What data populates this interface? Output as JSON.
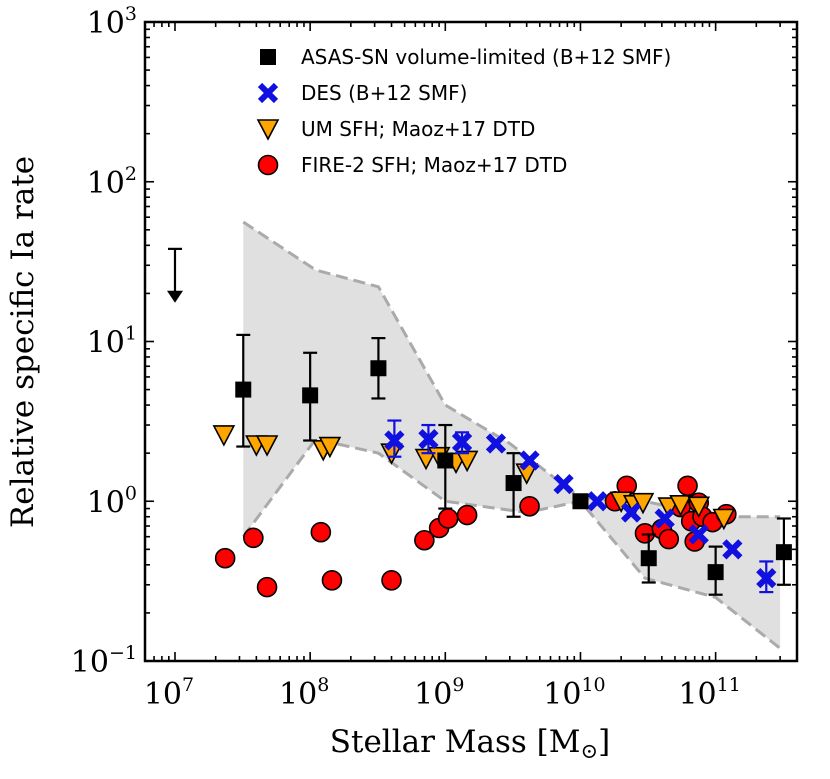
{
  "chart_data": {
    "type": "scatter",
    "xscale": "log",
    "yscale": "log",
    "xlim": [
      6000000,
      400000000000
    ],
    "ylim": [
      0.1,
      1000
    ],
    "xlabel": "Stellar Mass [M",
    "xlabel_unit_symbol": "⊙",
    "xlabel_close": "]",
    "ylabel": "Relative specific Ia rate",
    "x_ticks": [
      {
        "value": 10000000,
        "base": "10",
        "exp": "7"
      },
      {
        "value": 100000000,
        "base": "10",
        "exp": "8"
      },
      {
        "value": 1000000000,
        "base": "10",
        "exp": "9"
      },
      {
        "value": 10000000000,
        "base": "10",
        "exp": "10"
      },
      {
        "value": 100000000000,
        "base": "10",
        "exp": "11"
      }
    ],
    "y_ticks": [
      {
        "value": 0.1,
        "base": "10",
        "exp": "−1"
      },
      {
        "value": 1,
        "base": "10",
        "exp": "0"
      },
      {
        "value": 10,
        "base": "10",
        "exp": "1"
      },
      {
        "value": 100,
        "base": "10",
        "exp": "2"
      },
      {
        "value": 1000,
        "base": "10",
        "exp": "3"
      }
    ],
    "legend_position": "top-right",
    "colors": {
      "asassn": "#000000",
      "des": "#1010e0",
      "um": "#ffa500",
      "fire": "#ff0000",
      "band_fill": "#e0e0e0",
      "band_edge": "#aaaaaa"
    },
    "upper_limit": {
      "x": 10000000,
      "y_top": 38,
      "y_bottom": 18
    },
    "band": {
      "upper": [
        [
          32000000,
          56
        ],
        [
          110000000,
          28
        ],
        [
          320000000,
          22
        ],
        [
          1000000000,
          4
        ],
        [
          3000000000,
          2.3
        ],
        [
          10000000000,
          1.05
        ],
        [
          30000000000,
          1.0
        ],
        [
          100000000000,
          0.8
        ],
        [
          300000000000,
          0.8
        ]
      ],
      "lower": [
        [
          32000000,
          0.6
        ],
        [
          110000000,
          2.45
        ],
        [
          320000000,
          2.0
        ],
        [
          1000000000,
          1.0
        ],
        [
          4000000000,
          0.85
        ],
        [
          10000000000,
          1.0
        ],
        [
          30000000000,
          0.33
        ],
        [
          100000000000,
          0.25
        ],
        [
          300000000000,
          0.12
        ]
      ]
    },
    "series": [
      {
        "name": "ASAS-SN volume-limited (B+12 SMF)",
        "marker": "square",
        "points": [
          {
            "x": 32000000,
            "y": 5.0,
            "lo": 2.2,
            "hi": 11.0
          },
          {
            "x": 100000000,
            "y": 4.6,
            "lo": 2.4,
            "hi": 8.5
          },
          {
            "x": 320000000,
            "y": 6.8,
            "lo": 4.4,
            "hi": 10.5
          },
          {
            "x": 1000000000,
            "y": 1.8,
            "lo": 0.9,
            "hi": 3.0
          },
          {
            "x": 3200000000,
            "y": 1.3,
            "lo": 0.8,
            "hi": 2.0
          },
          {
            "x": 10000000000,
            "y": 1.0
          },
          {
            "x": 32000000000,
            "y": 0.44,
            "lo": 0.31,
            "hi": 0.62
          },
          {
            "x": 100000000000,
            "y": 0.36,
            "lo": 0.26,
            "hi": 0.52
          },
          {
            "x": 320000000000,
            "y": 0.48,
            "lo": 0.3,
            "hi": 0.78
          }
        ]
      },
      {
        "name": "DES (B+12 SMF)",
        "marker": "x",
        "points": [
          {
            "x": 420000000,
            "y": 2.4,
            "lo": 1.9,
            "hi": 3.2
          },
          {
            "x": 750000000,
            "y": 2.45,
            "lo": 2.0,
            "hi": 3.0
          },
          {
            "x": 1330000000,
            "y": 2.35,
            "lo": 2.0,
            "hi": 2.7
          },
          {
            "x": 2370000000,
            "y": 2.3
          },
          {
            "x": 4200000000,
            "y": 1.8
          },
          {
            "x": 7500000000,
            "y": 1.28
          },
          {
            "x": 13300000000,
            "y": 1.0
          },
          {
            "x": 23700000000,
            "y": 0.85
          },
          {
            "x": 42000000000,
            "y": 0.78
          },
          {
            "x": 75000000000,
            "y": 0.62
          },
          {
            "x": 133000000000,
            "y": 0.5
          },
          {
            "x": 237000000000,
            "y": 0.33,
            "lo": 0.27,
            "hi": 0.42
          }
        ]
      },
      {
        "name": "UM SFH; Maoz+17 DTD",
        "marker": "triangle-down",
        "points": [
          {
            "x": 23000000,
            "y": 2.6
          },
          {
            "x": 40000000,
            "y": 2.25
          },
          {
            "x": 48000000,
            "y": 2.25
          },
          {
            "x": 125000000,
            "y": 2.1
          },
          {
            "x": 140000000,
            "y": 2.2
          },
          {
            "x": 400000000,
            "y": 2.0
          },
          {
            "x": 720000000,
            "y": 1.85
          },
          {
            "x": 900000000,
            "y": 1.9
          },
          {
            "x": 1200000000,
            "y": 1.75
          },
          {
            "x": 1450000000,
            "y": 1.8
          },
          {
            "x": 4000000000,
            "y": 1.5
          },
          {
            "x": 20000000000,
            "y": 1.0
          },
          {
            "x": 25000000000,
            "y": 0.95
          },
          {
            "x": 29000000000,
            "y": 0.98
          },
          {
            "x": 45000000000,
            "y": 0.92
          },
          {
            "x": 55000000000,
            "y": 0.95
          },
          {
            "x": 75000000000,
            "y": 0.93
          },
          {
            "x": 115000000000,
            "y": 0.78
          }
        ]
      },
      {
        "name": "FIRE-2 SFH; Maoz+17 DTD",
        "marker": "circle",
        "points": [
          {
            "x": 23500000,
            "y": 0.44
          },
          {
            "x": 38000000,
            "y": 0.59
          },
          {
            "x": 48000000,
            "y": 0.29
          },
          {
            "x": 120000000,
            "y": 0.64
          },
          {
            "x": 145000000,
            "y": 0.32
          },
          {
            "x": 400000000,
            "y": 0.32
          },
          {
            "x": 700000000,
            "y": 0.57
          },
          {
            "x": 900000000,
            "y": 0.68
          },
          {
            "x": 1050000000,
            "y": 0.78
          },
          {
            "x": 1450000000,
            "y": 0.82
          },
          {
            "x": 4200000000,
            "y": 0.93
          },
          {
            "x": 18000000000,
            "y": 1.0
          },
          {
            "x": 22000000000,
            "y": 1.25
          },
          {
            "x": 30000000000,
            "y": 0.63
          },
          {
            "x": 40000000000,
            "y": 0.67
          },
          {
            "x": 45000000000,
            "y": 0.58
          },
          {
            "x": 55000000000,
            "y": 0.92
          },
          {
            "x": 62000000000,
            "y": 1.25
          },
          {
            "x": 66000000000,
            "y": 0.75
          },
          {
            "x": 70000000000,
            "y": 0.56
          },
          {
            "x": 75000000000,
            "y": 0.98
          },
          {
            "x": 80000000000,
            "y": 0.8
          },
          {
            "x": 95000000000,
            "y": 0.74
          },
          {
            "x": 120000000000,
            "y": 0.83
          }
        ]
      }
    ]
  }
}
